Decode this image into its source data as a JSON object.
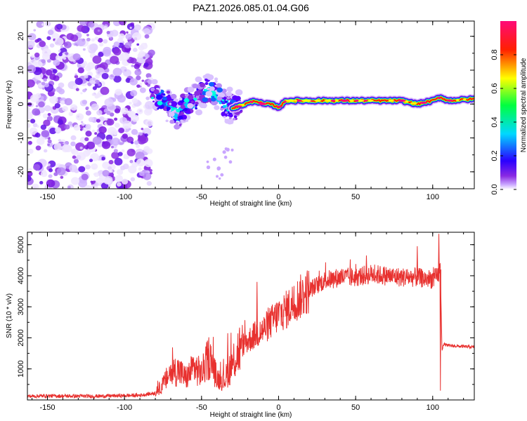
{
  "chart_data": [
    {
      "type": "heatmap",
      "title": "PAZ1.2026.085.01.04.G06",
      "xlabel": "Height of straight line (km)",
      "ylabel": "Frequency (Hz)",
      "xlim": [
        -163,
        127
      ],
      "ylim": [
        -25,
        24.5
      ],
      "xticks": [
        "-150",
        "-100",
        "-50",
        "0",
        "50",
        "100"
      ],
      "xtick_values": [
        -150,
        -100,
        -50,
        0,
        50,
        100
      ],
      "yticks": [
        "-20",
        "-10",
        "0",
        "10",
        "20"
      ],
      "ytick_values": [
        -20,
        -10,
        0,
        10,
        20
      ],
      "colorbar": {
        "label": "Normalized spectral amplitude",
        "range": [
          0,
          1
        ],
        "ticks": [
          "0.0",
          "0.2",
          "0.4",
          "0.6",
          "0.8"
        ],
        "tick_values": [
          0.0,
          0.2,
          0.4,
          0.6,
          0.8
        ]
      },
      "regions": [
        {
          "name": "noise",
          "x_range": [
            -163,
            -82
          ],
          "freq_range": [
            -25,
            24.5
          ],
          "amplitude": "low"
        },
        {
          "name": "onset",
          "x_range": [
            -82,
            -25
          ],
          "center_freq_hz": 1,
          "amplitude": "low-medium"
        },
        {
          "name": "carrier",
          "x_range": [
            -25,
            127
          ],
          "center_freq_hz": 1,
          "amplitude": "high"
        }
      ],
      "carrier_track": {
        "x": [
          -80,
          -75,
          -70,
          -65,
          -60,
          -55,
          -50,
          -45,
          -40,
          -35,
          -32,
          -28,
          -22,
          -15,
          -10,
          -5,
          0,
          5,
          10,
          20,
          40,
          60,
          80,
          90,
          100,
          105,
          110,
          127
        ],
        "freq": [
          2,
          1,
          -1,
          -3,
          0,
          1,
          3,
          4,
          3,
          0,
          -1,
          -1,
          0,
          1,
          0,
          0,
          -1,
          1,
          1,
          1,
          1,
          1,
          1,
          0,
          1,
          2,
          1,
          1.5
        ]
      }
    },
    {
      "type": "line",
      "xlabel": "Height of straight line (km)",
      "ylabel": "SNR (10 * v/v)",
      "xlim": [
        -163,
        127
      ],
      "ylim": [
        0,
        5400
      ],
      "xticks": [
        "-150",
        "-100",
        "-50",
        "0",
        "50",
        "100"
      ],
      "xtick_values": [
        -150,
        -100,
        -50,
        0,
        50,
        100
      ],
      "yticks": [
        "1000",
        "2000",
        "3000",
        "4000",
        "5000"
      ],
      "ytick_values": [
        1000,
        2000,
        3000,
        4000,
        5000
      ],
      "series": [
        {
          "name": "SNR",
          "color": "#e8312f",
          "x": [
            -163,
            -150,
            -120,
            -90,
            -80,
            -75,
            -70,
            -65,
            -60,
            -55,
            -50,
            -45,
            -40,
            -35,
            -30,
            -25,
            -20,
            -15,
            -10,
            -5,
            0,
            5,
            10,
            15,
            20,
            25,
            30,
            40,
            50,
            60,
            70,
            80,
            90,
            95,
            100,
            103,
            105,
            106,
            107,
            110,
            120,
            127
          ],
          "y": [
            120,
            130,
            120,
            150,
            220,
            500,
            900,
            950,
            700,
            1050,
            850,
            1400,
            700,
            650,
            1200,
            1700,
            1900,
            2100,
            2250,
            2500,
            2750,
            2900,
            3150,
            3350,
            3550,
            3700,
            3850,
            3950,
            3950,
            4050,
            4000,
            3950,
            3950,
            3900,
            3900,
            3950,
            4200,
            1600,
            1800,
            1750,
            1720,
            1700
          ]
        }
      ],
      "spikes": [
        {
          "x": -33,
          "y": 2150
        },
        {
          "x": -14,
          "y": 3800
        },
        {
          "x": 57,
          "y": 4650
        },
        {
          "x": 90,
          "y": 4950
        },
        {
          "x": 104,
          "y": 5350
        },
        {
          "x": 105,
          "y": 300
        }
      ]
    }
  ]
}
